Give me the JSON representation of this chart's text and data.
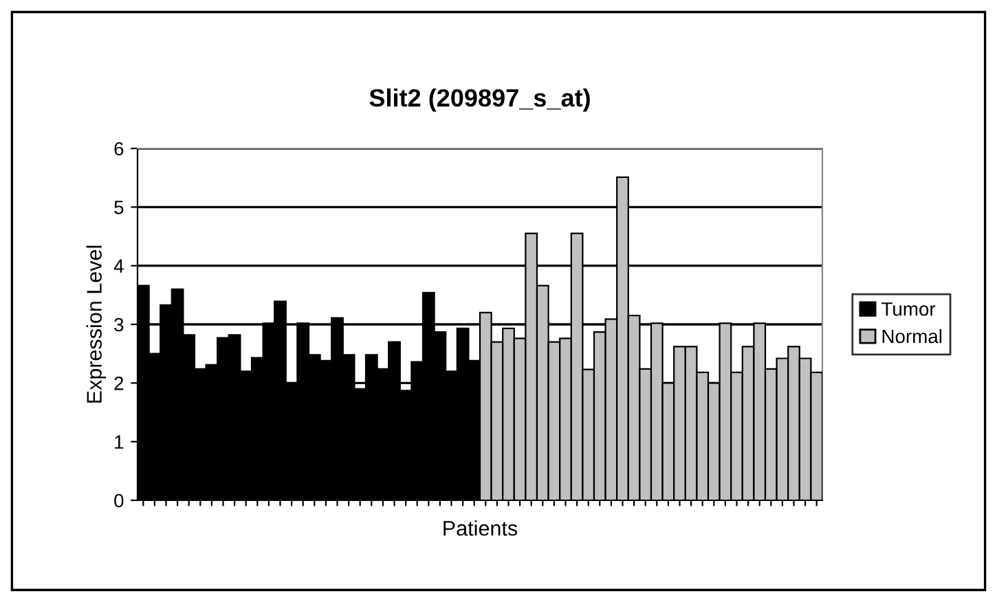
{
  "chart_data": {
    "type": "bar",
    "title": "Slit2 (209897_s_at)",
    "xlabel": "Patients",
    "ylabel": "Expression Level",
    "categories": [
      null,
      null,
      null,
      null,
      null,
      null,
      null,
      null,
      null,
      null,
      null,
      null,
      null,
      null,
      null,
      null,
      null,
      null,
      null,
      null,
      null,
      null,
      null,
      null,
      null,
      null,
      null,
      null,
      null,
      null,
      null,
      null,
      null,
      null,
      null,
      null,
      null,
      null,
      null,
      null,
      null,
      null,
      null,
      null,
      null,
      null,
      null,
      null,
      null,
      null,
      null,
      null,
      null,
      null,
      null,
      null,
      null,
      null,
      null,
      null
    ],
    "series": [
      {
        "name": "Tumor",
        "color": "#000000",
        "values": [
          3.66,
          2.5,
          3.33,
          3.6,
          2.82,
          2.24,
          2.31,
          2.77,
          2.82,
          2.2,
          2.43,
          3.02,
          3.39,
          2.0,
          3.02,
          2.48,
          2.38,
          3.11,
          2.48,
          1.9,
          2.48,
          2.24,
          2.7,
          1.87,
          2.36,
          3.54,
          2.87,
          2.2,
          2.93,
          2.38,
          null,
          null,
          null,
          null,
          null,
          null,
          null,
          null,
          null,
          null,
          null,
          null,
          null,
          null,
          null,
          null,
          null,
          null,
          null,
          null,
          null,
          null,
          null,
          null,
          null,
          null,
          null,
          null,
          null,
          null
        ]
      },
      {
        "name": "Normal",
        "color": "#c0c0c0",
        "values": [
          null,
          null,
          null,
          null,
          null,
          null,
          null,
          null,
          null,
          null,
          null,
          null,
          null,
          null,
          null,
          null,
          null,
          null,
          null,
          null,
          null,
          null,
          null,
          null,
          null,
          null,
          null,
          null,
          null,
          null,
          3.2,
          2.7,
          2.93,
          2.76,
          4.55,
          3.66,
          2.7,
          2.76,
          4.55,
          2.23,
          2.87,
          3.09,
          5.51,
          3.15,
          2.24,
          3.02,
          2.0,
          2.62,
          2.62,
          2.18,
          2.0,
          3.02,
          2.18,
          2.62,
          3.02,
          2.24,
          2.42,
          2.62,
          2.42,
          2.18
        ]
      }
    ],
    "ylim": [
      0,
      6
    ],
    "yticks": [
      0,
      1,
      2,
      3,
      4,
      5,
      6
    ],
    "grid": "y",
    "legend": "right"
  }
}
